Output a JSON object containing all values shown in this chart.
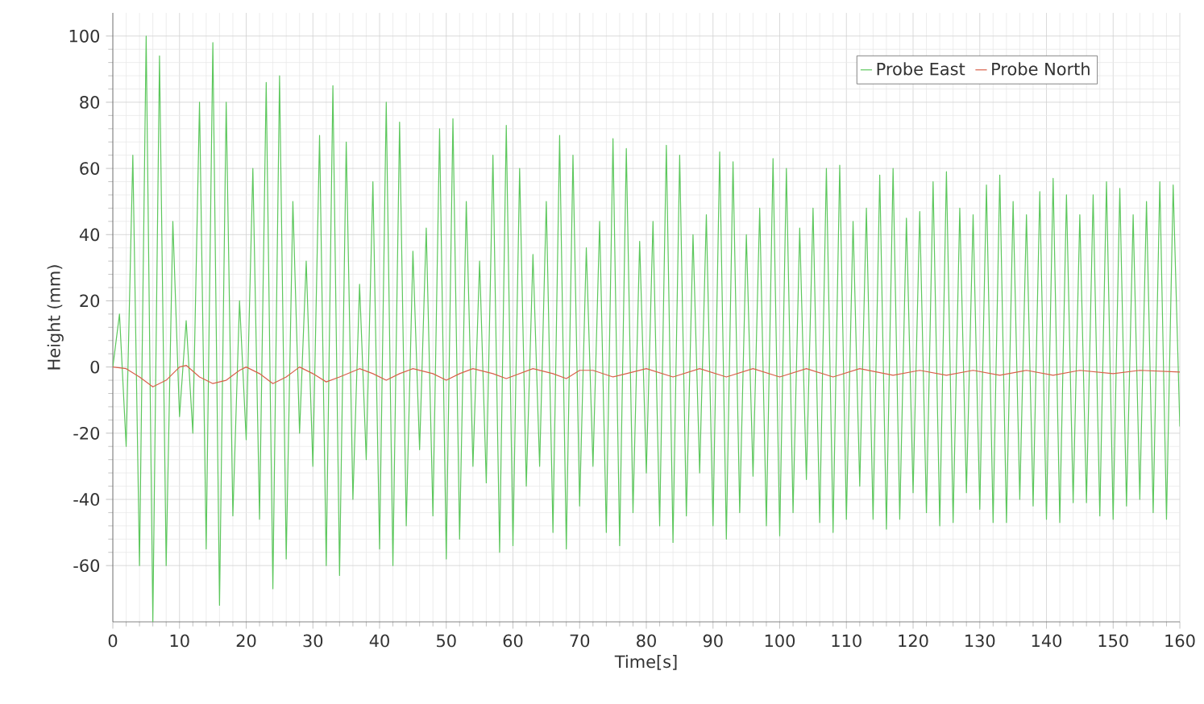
{
  "chart_data": {
    "type": "line",
    "xlabel": "Time[s]",
    "ylabel": "Height (mm)",
    "xlim": [
      0,
      160
    ],
    "ylim": [
      -77,
      107
    ],
    "xticks": [
      0,
      10,
      20,
      30,
      40,
      50,
      60,
      70,
      80,
      90,
      100,
      110,
      120,
      130,
      140,
      150,
      160
    ],
    "yticks": [
      -60,
      -40,
      -20,
      0,
      20,
      40,
      60,
      80,
      100
    ],
    "grid": true,
    "legend": "top right",
    "marker": "none",
    "line_style": "solid",
    "series": [
      {
        "name": "Probe East",
        "color": "#5dc75d",
        "x": [
          0,
          1,
          2,
          3,
          4,
          5,
          6,
          7,
          8,
          9,
          10,
          11,
          12,
          13,
          14,
          15,
          16,
          17,
          18,
          19,
          20,
          21,
          22,
          23,
          24,
          25,
          26,
          27,
          28,
          29,
          30,
          31,
          32,
          33,
          34,
          35,
          36,
          37,
          38,
          39,
          40,
          41,
          42,
          43,
          44,
          45,
          46,
          47,
          48,
          49,
          50,
          51,
          52,
          53,
          54,
          55,
          56,
          57,
          58,
          59,
          60,
          61,
          62,
          63,
          64,
          65,
          66,
          67,
          68,
          69,
          70,
          71,
          72,
          73,
          74,
          75,
          76,
          77,
          78,
          79,
          80,
          81,
          82,
          83,
          84,
          85,
          86,
          87,
          88,
          89,
          90,
          91,
          92,
          93,
          94,
          95,
          96,
          97,
          98,
          99,
          100,
          101,
          102,
          103,
          104,
          105,
          106,
          107,
          108,
          109,
          110,
          111,
          112,
          113,
          114,
          115,
          116,
          117,
          118,
          119,
          120,
          121,
          122,
          123,
          124,
          125,
          126,
          127,
          128,
          129,
          130,
          131,
          132,
          133,
          134,
          135,
          136,
          137,
          138,
          139,
          140,
          141,
          142,
          143,
          144,
          145,
          146,
          147,
          148,
          149,
          150,
          151,
          152,
          153,
          154,
          155,
          156,
          157,
          158,
          159,
          160
        ],
        "values": [
          0,
          16,
          -24,
          64,
          -60,
          100,
          -77,
          94,
          -60,
          44,
          -15,
          14,
          -20,
          80,
          -55,
          98,
          -72,
          80,
          -45,
          20,
          -22,
          60,
          -46,
          86,
          -67,
          88,
          -58,
          50,
          -20,
          32,
          -30,
          70,
          -60,
          85,
          -63,
          68,
          -40,
          25,
          -28,
          56,
          -55,
          80,
          -60,
          74,
          -48,
          35,
          -25,
          42,
          -45,
          72,
          -58,
          75,
          -52,
          50,
          -30,
          32,
          -35,
          64,
          -56,
          73,
          -54,
          60,
          -36,
          34,
          -30,
          50,
          -50,
          70,
          -55,
          64,
          -42,
          36,
          -30,
          44,
          -50,
          69,
          -54,
          66,
          -44,
          38,
          -32,
          44,
          -48,
          67,
          -53,
          64,
          -45,
          40,
          -32,
          46,
          -48,
          65,
          -52,
          62,
          -44,
          40,
          -33,
          48,
          -48,
          63,
          -51,
          60,
          -44,
          42,
          -34,
          48,
          -47,
          60,
          -50,
          61,
          -46,
          44,
          -36,
          48,
          -46,
          58,
          -49,
          60,
          -46,
          45,
          -38,
          47,
          -44,
          56,
          -48,
          59,
          -47,
          48,
          -38,
          46,
          -43,
          55,
          -47,
          58,
          -47,
          50,
          -40,
          46,
          -42,
          53,
          -46,
          57,
          -47,
          52,
          -41,
          46,
          -41,
          52,
          -45,
          56,
          -46,
          54,
          -42,
          46,
          -40,
          50,
          -44,
          56,
          -46,
          55,
          -18
        ]
      },
      {
        "name": "Probe North",
        "color": "#d9604a",
        "x": [
          0,
          2,
          4,
          6,
          8,
          10,
          11,
          13,
          15,
          17,
          19,
          20,
          22,
          24,
          26,
          28,
          30,
          32,
          34,
          37,
          39,
          41,
          43,
          45,
          48,
          50,
          52,
          54,
          57,
          59,
          61,
          63,
          66,
          68,
          70,
          72,
          75,
          77,
          80,
          84,
          88,
          92,
          96,
          100,
          104,
          108,
          112,
          117,
          121,
          125,
          129,
          133,
          137,
          141,
          145,
          150,
          154,
          160
        ],
        "values": [
          0,
          -0.5,
          -3,
          -6,
          -4,
          0,
          0.5,
          -3,
          -5,
          -4,
          -1,
          0,
          -2,
          -5,
          -3,
          0,
          -2,
          -4.5,
          -3,
          -0.5,
          -2,
          -4,
          -2,
          -0.5,
          -2,
          -4,
          -2,
          -0.5,
          -2,
          -3.5,
          -2,
          -0.5,
          -2,
          -3.5,
          -1,
          -1,
          -3,
          -2,
          -0.5,
          -3,
          -0.5,
          -3,
          -0.5,
          -3,
          -0.5,
          -3,
          -0.5,
          -2.5,
          -1,
          -2.5,
          -1,
          -2.5,
          -1,
          -2.5,
          -1,
          -2,
          -1,
          -1.5
        ]
      }
    ]
  }
}
